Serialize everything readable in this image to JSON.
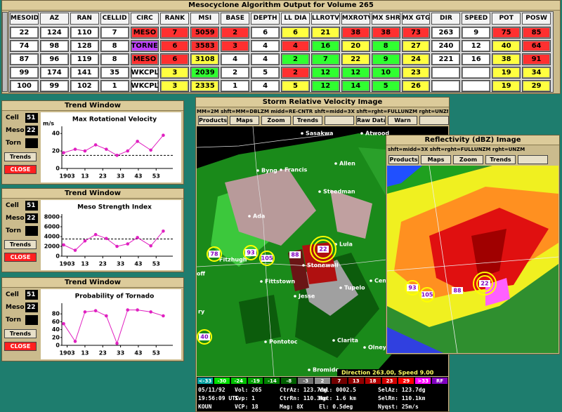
{
  "mesocyclone_window": {
    "title": "Mesocyclone Algorithm Output for Volume 265",
    "columns": [
      "MESOID",
      "AZ",
      "RAN",
      "CELLID",
      "CIRC",
      "RANK",
      "MSI",
      "BASE",
      "DEPTH",
      "LL DIA",
      "LLROTV",
      "MXROTV",
      "MX SHR",
      "MX GTG",
      "DIR",
      "SPEED",
      "POT",
      "POSW"
    ],
    "rows": [
      [
        22,
        124,
        110,
        7,
        "MESO",
        7,
        5059,
        2,
        6,
        6,
        21,
        38,
        38,
        73,
        263,
        9,
        75,
        85
      ],
      [
        74,
        98,
        128,
        8,
        "TORNES",
        6,
        3583,
        3,
        4,
        4,
        16,
        20,
        8,
        27,
        240,
        12,
        40,
        64
      ],
      [
        87,
        96,
        119,
        8,
        "MESO",
        6,
        3108,
        4,
        4,
        2,
        7,
        22,
        9,
        24,
        221,
        16,
        38,
        91
      ],
      [
        99,
        174,
        141,
        35,
        "WKCPLT",
        3,
        2039,
        2,
        5,
        2,
        12,
        12,
        10,
        23,
        null,
        null,
        19,
        34
      ],
      [
        100,
        99,
        102,
        1,
        "WKCPLT",
        3,
        2335,
        1,
        4,
        5,
        12,
        14,
        5,
        26,
        null,
        null,
        19,
        29
      ]
    ],
    "cell_colors": [
      [
        "#ffffff",
        "#ffffff",
        "#ffffff",
        "#ffffff",
        "#ff3030",
        "#ff3030",
        "#ff3030",
        "#ff3030",
        "#ffffff",
        "#ffff40",
        "#ffff40",
        "#ff3030",
        "#ff3030",
        "#ff3030",
        "#ffffff",
        "#ffffff",
        "#ff3030",
        "#ff3030"
      ],
      [
        "#ffffff",
        "#ffffff",
        "#ffffff",
        "#ffffff",
        "#c040ff",
        "#ff3030",
        "#ff3030",
        "#ff3030",
        "#ffffff",
        "#ff3030",
        "#30ff30",
        "#ffff40",
        "#30ff30",
        "#ffff40",
        "#ffffff",
        "#ffffff",
        "#ffff40",
        "#ff3030"
      ],
      [
        "#ffffff",
        "#ffffff",
        "#ffffff",
        "#ffffff",
        "#ff3030",
        "#ff3030",
        "#ffff40",
        "#ffffff",
        "#ffffff",
        "#30ff30",
        "#30ff30",
        "#ffff40",
        "#30ff30",
        "#ffff40",
        "#ffffff",
        "#ffffff",
        "#ffff40",
        "#ff3030"
      ],
      [
        "#ffffff",
        "#ffffff",
        "#ffffff",
        "#ffffff",
        "#ffffff",
        "#ffff40",
        "#30ff30",
        "#ffffff",
        "#ffffff",
        "#ff3030",
        "#30ff30",
        "#30ff30",
        "#30ff30",
        "#ffff40",
        "#ffffff",
        "#ffffff",
        "#ffff40",
        "#ffff40"
      ],
      [
        "#ffffff",
        "#ffffff",
        "#ffffff",
        "#ffffff",
        "#ffffff",
        "#ffff40",
        "#ffff40",
        "#ffffff",
        "#ffffff",
        "#ffff40",
        "#30ff30",
        "#30ff30",
        "#30ff30",
        "#ffff40",
        "#ffffff",
        "#ffffff",
        "#ffff40",
        "#ffff40"
      ]
    ]
  },
  "trend_windows": [
    {
      "title": "Trend Window",
      "cell_label": "Cell",
      "cell": 51,
      "meso_label": "Meso",
      "meso": 22,
      "torn_label": "Torn",
      "trends_button": "Trends",
      "close_button": "CLOSE",
      "chart_data": {
        "type": "line",
        "title": "Max Rotational Velocity",
        "y_unit": "m/s",
        "color": "#e020c0",
        "x": [
          1,
          7.5,
          13,
          19,
          25,
          31,
          37,
          42.5,
          50,
          57
        ],
        "values": [
          18,
          22,
          20,
          27,
          22,
          15,
          20,
          31,
          21,
          38
        ],
        "xlim": [
          0,
          60
        ],
        "xticks": [
          {
            "value": 3,
            "label": "1903"
          },
          13,
          23,
          33,
          43,
          53
        ],
        "ylim": [
          0,
          45
        ],
        "yticks": [
          0,
          20,
          40
        ],
        "threshold": 15
      }
    },
    {
      "title": "Trend Window",
      "cell_label": "Cell",
      "cell": 51,
      "meso_label": "Meso",
      "meso": 22,
      "torn_label": "Torn",
      "trends_button": "Trends",
      "close_button": "CLOSE",
      "chart_data": {
        "type": "line",
        "title": "Meso Strength Index",
        "color": "#e020c0",
        "x": [
          1,
          7.5,
          13,
          19,
          25,
          31,
          37,
          42.5,
          50,
          57
        ],
        "values": [
          2300,
          1200,
          3100,
          4400,
          3600,
          2000,
          2500,
          3800,
          2100,
          5100
        ],
        "xlim": [
          0,
          60
        ],
        "xticks": [
          {
            "value": 3,
            "label": "1903"
          },
          13,
          23,
          33,
          43,
          53
        ],
        "ylim": [
          0,
          8000
        ],
        "yticks": [
          0,
          2000,
          4000,
          6000,
          8000
        ],
        "threshold": 3500
      }
    },
    {
      "title": "Trend Window",
      "cell_label": "Cell",
      "cell": 51,
      "meso_label": "Meso",
      "meso": 22,
      "torn_label": "Torn",
      "trends_button": "Trends",
      "close_button": "CLOSE",
      "chart_data": {
        "type": "line",
        "title": "Probability of Tornado",
        "color": "#e020c0",
        "x": [
          1,
          7.5,
          13,
          19,
          25,
          31,
          37,
          42.5,
          50,
          57
        ],
        "values": [
          55,
          10,
          85,
          88,
          75,
          5,
          90,
          90,
          85,
          75
        ],
        "xlim": [
          0,
          60
        ],
        "xticks": [
          {
            "value": 3,
            "label": "1903"
          },
          13,
          23,
          33,
          43,
          53
        ],
        "ylim": [
          0,
          100
        ],
        "yticks": [
          0,
          20,
          40,
          60,
          80
        ]
      }
    }
  ],
  "velocity_window": {
    "title": "Storm Relative Velocity Image",
    "help": "MM=2M  shft=MM=DBLZM  midd=RE-CNTR  shft=midd=3X  shft=rght=FULLUNZM  rght=UNZM",
    "buttons": [
      "Products",
      "Maps",
      "Zoom",
      "Trends",
      "Raw Data",
      "Warn"
    ],
    "places": [
      "Sasakwa",
      "Atwood",
      "Byng",
      "Francis",
      "Allen",
      "Steedman",
      "Ada",
      "Fitzhugh",
      "Lula",
      "Stonewall",
      "Fittstown",
      "Jesse",
      "Tupelo",
      "Pontotoc",
      "Clarita",
      "Olney",
      "Bromide",
      "Cen",
      "off",
      "ry"
    ],
    "mesos": [
      "22",
      "78",
      "93",
      "105",
      "88",
      "40"
    ],
    "annotation": "Direction 263.00, Speed 9.00",
    "color_scale": [
      "<-33",
      "-30",
      "-24",
      "-19",
      "-14",
      "-8",
      "-3",
      "2",
      "7",
      "13",
      "18",
      "23",
      "29",
      ">33",
      "RF"
    ],
    "color_scale_colors": [
      "#00a0a0",
      "#00e000",
      "#00c000",
      "#00a000",
      "#008000",
      "#006000",
      "#707070",
      "#909090",
      "#700000",
      "#900000",
      "#b00000",
      "#d00000",
      "#ff0000",
      "#ff00ff",
      "#8000c0"
    ],
    "info": [
      [
        "05/11/92",
        "Vol: 265",
        "CtrAz: 123.7dg",
        "Val: 0002.5",
        "SelAz: 123.7dg"
      ],
      [
        "19:56:09 UTC",
        "Svp: 1",
        "CtrRn: 110.3km",
        "Hgt: 1.6 km",
        "SelRn: 110.1km"
      ],
      [
        "KOUN",
        "VCP: 18",
        "Mag: 8X",
        "El: 0.5deg",
        "Nyqst: 25m/s"
      ]
    ]
  },
  "reflectivity_window": {
    "title": "Reflectivity (dBZ) Image",
    "help": "shft=midd=3X  shft=rght=FULLUNZM  rght=UNZM",
    "buttons": [
      "Products",
      "Maps",
      "Zoom",
      "Trends"
    ],
    "mesos": [
      "93",
      "105",
      "88",
      "22"
    ]
  }
}
